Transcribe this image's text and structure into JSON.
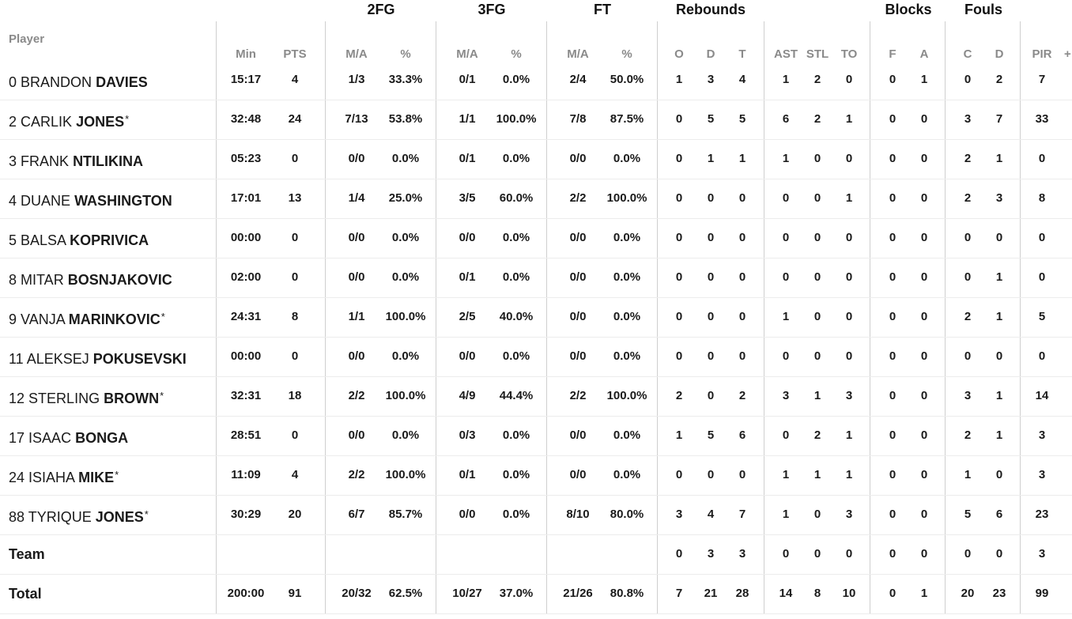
{
  "groups": {
    "two_fg": "2FG",
    "three_fg": "3FG",
    "ft": "FT",
    "rebounds": "Rebounds",
    "blocks": "Blocks",
    "fouls": "Fouls"
  },
  "headers": {
    "player": "Player",
    "min": "Min",
    "pts": "PTS",
    "two_ma": "M/A",
    "two_pct": "%",
    "three_ma": "M/A",
    "three_pct": "%",
    "ft_ma": "M/A",
    "ft_pct": "%",
    "reb_o": "O",
    "reb_d": "D",
    "reb_t": "T",
    "ast": "AST",
    "stl": "STL",
    "to": "TO",
    "blk_f": "F",
    "blk_a": "A",
    "foul_c": "C",
    "foul_d": "D",
    "pir": "PIR",
    "plus": "+"
  },
  "rows": [
    {
      "num": "0",
      "first": "BRANDON",
      "last": "DAVIES",
      "star": "",
      "min": "15:17",
      "pts": "4",
      "two_ma": "1/3",
      "two_pct": "33.3%",
      "three_ma": "0/1",
      "three_pct": "0.0%",
      "ft_ma": "2/4",
      "ft_pct": "50.0%",
      "reb_o": "1",
      "reb_d": "3",
      "reb_t": "4",
      "ast": "1",
      "stl": "2",
      "to": "0",
      "blk_f": "0",
      "blk_a": "1",
      "foul_c": "0",
      "foul_d": "2",
      "pir": "7"
    },
    {
      "num": "2",
      "first": "CARLIK",
      "last": "JONES",
      "star": "*",
      "min": "32:48",
      "pts": "24",
      "two_ma": "7/13",
      "two_pct": "53.8%",
      "three_ma": "1/1",
      "three_pct": "100.0%",
      "ft_ma": "7/8",
      "ft_pct": "87.5%",
      "reb_o": "0",
      "reb_d": "5",
      "reb_t": "5",
      "ast": "6",
      "stl": "2",
      "to": "1",
      "blk_f": "0",
      "blk_a": "0",
      "foul_c": "3",
      "foul_d": "7",
      "pir": "33"
    },
    {
      "num": "3",
      "first": "FRANK",
      "last": "NTILIKINA",
      "star": "",
      "min": "05:23",
      "pts": "0",
      "two_ma": "0/0",
      "two_pct": "0.0%",
      "three_ma": "0/1",
      "three_pct": "0.0%",
      "ft_ma": "0/0",
      "ft_pct": "0.0%",
      "reb_o": "0",
      "reb_d": "1",
      "reb_t": "1",
      "ast": "1",
      "stl": "0",
      "to": "0",
      "blk_f": "0",
      "blk_a": "0",
      "foul_c": "2",
      "foul_d": "1",
      "pir": "0"
    },
    {
      "num": "4",
      "first": "DUANE",
      "last": "WASHINGTON",
      "star": "",
      "min": "17:01",
      "pts": "13",
      "two_ma": "1/4",
      "two_pct": "25.0%",
      "three_ma": "3/5",
      "three_pct": "60.0%",
      "ft_ma": "2/2",
      "ft_pct": "100.0%",
      "reb_o": "0",
      "reb_d": "0",
      "reb_t": "0",
      "ast": "0",
      "stl": "0",
      "to": "1",
      "blk_f": "0",
      "blk_a": "0",
      "foul_c": "2",
      "foul_d": "3",
      "pir": "8"
    },
    {
      "num": "5",
      "first": "BALSA",
      "last": "KOPRIVICA",
      "star": "",
      "min": "00:00",
      "pts": "0",
      "two_ma": "0/0",
      "two_pct": "0.0%",
      "three_ma": "0/0",
      "three_pct": "0.0%",
      "ft_ma": "0/0",
      "ft_pct": "0.0%",
      "reb_o": "0",
      "reb_d": "0",
      "reb_t": "0",
      "ast": "0",
      "stl": "0",
      "to": "0",
      "blk_f": "0",
      "blk_a": "0",
      "foul_c": "0",
      "foul_d": "0",
      "pir": "0"
    },
    {
      "num": "8",
      "first": "MITAR",
      "last": "BOSNJAKOVIC",
      "star": "",
      "min": "02:00",
      "pts": "0",
      "two_ma": "0/0",
      "two_pct": "0.0%",
      "three_ma": "0/1",
      "three_pct": "0.0%",
      "ft_ma": "0/0",
      "ft_pct": "0.0%",
      "reb_o": "0",
      "reb_d": "0",
      "reb_t": "0",
      "ast": "0",
      "stl": "0",
      "to": "0",
      "blk_f": "0",
      "blk_a": "0",
      "foul_c": "0",
      "foul_d": "1",
      "pir": "0"
    },
    {
      "num": "9",
      "first": "VANJA",
      "last": "MARINKOVIC",
      "star": "*",
      "min": "24:31",
      "pts": "8",
      "two_ma": "1/1",
      "two_pct": "100.0%",
      "three_ma": "2/5",
      "three_pct": "40.0%",
      "ft_ma": "0/0",
      "ft_pct": "0.0%",
      "reb_o": "0",
      "reb_d": "0",
      "reb_t": "0",
      "ast": "1",
      "stl": "0",
      "to": "0",
      "blk_f": "0",
      "blk_a": "0",
      "foul_c": "2",
      "foul_d": "1",
      "pir": "5"
    },
    {
      "num": "11",
      "first": "ALEKSEJ",
      "last": "POKUSEVSKI",
      "star": "",
      "min": "00:00",
      "pts": "0",
      "two_ma": "0/0",
      "two_pct": "0.0%",
      "three_ma": "0/0",
      "three_pct": "0.0%",
      "ft_ma": "0/0",
      "ft_pct": "0.0%",
      "reb_o": "0",
      "reb_d": "0",
      "reb_t": "0",
      "ast": "0",
      "stl": "0",
      "to": "0",
      "blk_f": "0",
      "blk_a": "0",
      "foul_c": "0",
      "foul_d": "0",
      "pir": "0"
    },
    {
      "num": "12",
      "first": "STERLING",
      "last": "BROWN",
      "star": "*",
      "min": "32:31",
      "pts": "18",
      "two_ma": "2/2",
      "two_pct": "100.0%",
      "three_ma": "4/9",
      "three_pct": "44.4%",
      "ft_ma": "2/2",
      "ft_pct": "100.0%",
      "reb_o": "2",
      "reb_d": "0",
      "reb_t": "2",
      "ast": "3",
      "stl": "1",
      "to": "3",
      "blk_f": "0",
      "blk_a": "0",
      "foul_c": "3",
      "foul_d": "1",
      "pir": "14"
    },
    {
      "num": "17",
      "first": "ISAAC",
      "last": "BONGA",
      "star": "",
      "min": "28:51",
      "pts": "0",
      "two_ma": "0/0",
      "two_pct": "0.0%",
      "three_ma": "0/3",
      "three_pct": "0.0%",
      "ft_ma": "0/0",
      "ft_pct": "0.0%",
      "reb_o": "1",
      "reb_d": "5",
      "reb_t": "6",
      "ast": "0",
      "stl": "2",
      "to": "1",
      "blk_f": "0",
      "blk_a": "0",
      "foul_c": "2",
      "foul_d": "1",
      "pir": "3"
    },
    {
      "num": "24",
      "first": "ISIAHA",
      "last": "MIKE",
      "star": "*",
      "min": "11:09",
      "pts": "4",
      "two_ma": "2/2",
      "two_pct": "100.0%",
      "three_ma": "0/1",
      "three_pct": "0.0%",
      "ft_ma": "0/0",
      "ft_pct": "0.0%",
      "reb_o": "0",
      "reb_d": "0",
      "reb_t": "0",
      "ast": "1",
      "stl": "1",
      "to": "1",
      "blk_f": "0",
      "blk_a": "0",
      "foul_c": "1",
      "foul_d": "0",
      "pir": "3"
    },
    {
      "num": "88",
      "first": "TYRIQUE",
      "last": "JONES",
      "star": "*",
      "min": "30:29",
      "pts": "20",
      "two_ma": "6/7",
      "two_pct": "85.7%",
      "three_ma": "0/0",
      "three_pct": "0.0%",
      "ft_ma": "8/10",
      "ft_pct": "80.0%",
      "reb_o": "3",
      "reb_d": "4",
      "reb_t": "7",
      "ast": "1",
      "stl": "0",
      "to": "3",
      "blk_f": "0",
      "blk_a": "0",
      "foul_c": "5",
      "foul_d": "6",
      "pir": "23"
    }
  ],
  "team": {
    "label": "Team",
    "min": "",
    "pts": "",
    "two_ma": "",
    "two_pct": "",
    "three_ma": "",
    "three_pct": "",
    "ft_ma": "",
    "ft_pct": "",
    "reb_o": "0",
    "reb_d": "3",
    "reb_t": "3",
    "ast": "0",
    "stl": "0",
    "to": "0",
    "blk_f": "0",
    "blk_a": "0",
    "foul_c": "0",
    "foul_d": "0",
    "pir": "3"
  },
  "total": {
    "label": "Total",
    "min": "200:00",
    "pts": "91",
    "two_ma": "20/32",
    "two_pct": "62.5%",
    "three_ma": "10/27",
    "three_pct": "37.0%",
    "ft_ma": "21/26",
    "ft_pct": "80.8%",
    "reb_o": "7",
    "reb_d": "21",
    "reb_t": "28",
    "ast": "14",
    "stl": "8",
    "to": "10",
    "blk_f": "0",
    "blk_a": "1",
    "foul_c": "20",
    "foul_d": "23",
    "pir": "99"
  }
}
